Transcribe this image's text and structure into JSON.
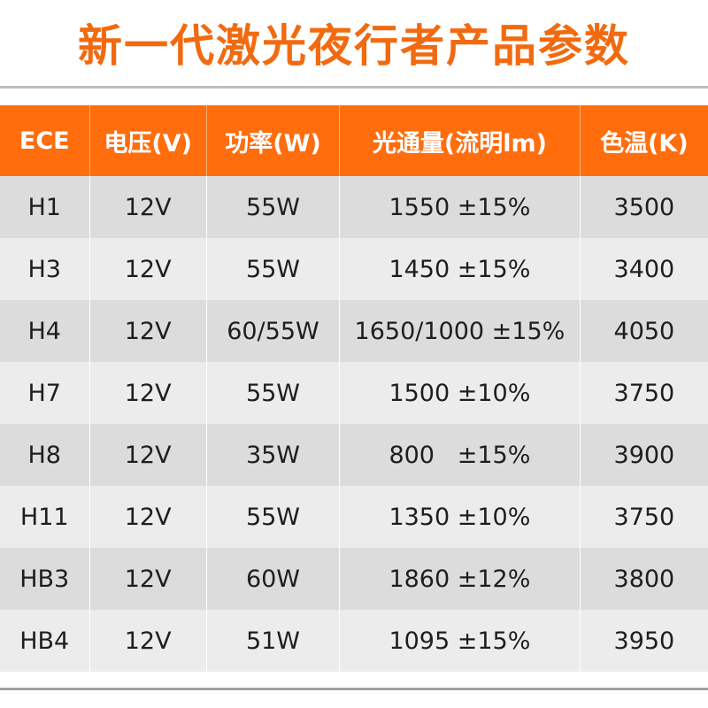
{
  "title": "新一代激光夜行者产品参数",
  "table": {
    "headers": [
      "ECE",
      "电压(V)",
      "功率(W)",
      "光通量(流明lm)",
      "色温(K)"
    ],
    "rows": [
      [
        "H1",
        "12V",
        "55W",
        "1550 ±15%",
        "3500"
      ],
      [
        "H3",
        "12V",
        "55W",
        "1450 ±15%",
        "3400"
      ],
      [
        "H4",
        "12V",
        "60/55W",
        "1650/1000 ±15%",
        "4050"
      ],
      [
        "H7",
        "12V",
        "55W",
        "1500 ±10%",
        "3750"
      ],
      [
        "H8",
        "12V",
        "35W",
        "800   ±15%",
        "3900"
      ],
      [
        "H11",
        "12V",
        "55W",
        "1350 ±10%",
        "3750"
      ],
      [
        "HB3",
        "12V",
        "60W",
        "1860 ±12%",
        "3800"
      ],
      [
        "HB4",
        "12V",
        "51W",
        "1095 ±15%",
        "3950"
      ]
    ]
  },
  "colors": {
    "accent": "#ff6d0d",
    "title": "#f26a10",
    "row_dark": "#dcdcdc",
    "row_light": "#ececec"
  }
}
